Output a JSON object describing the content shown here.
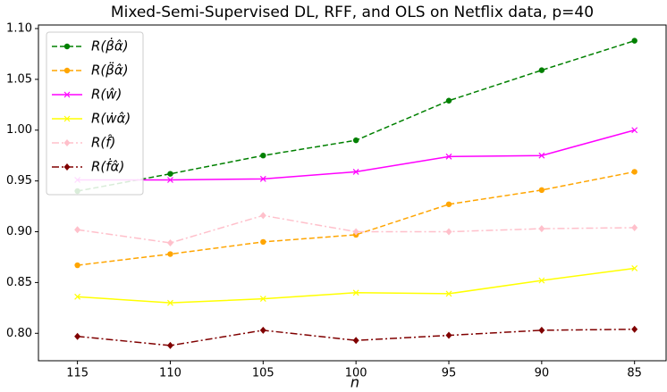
{
  "chart_data": {
    "type": "line",
    "title": "Mixed-Semi-Supervised DL, RFF, and OLS on Netflix data, p=40",
    "x_label": "n",
    "x": [
      115,
      110,
      105,
      100,
      95,
      90,
      85
    ],
    "xlim": [
      117.1,
      83.3
    ],
    "xticks": [
      115,
      110,
      105,
      100,
      95,
      90,
      85
    ],
    "ylim": [
      0.773,
      1.1035
    ],
    "yticks": [
      {
        "value": 0.8,
        "label": "0.80"
      },
      0.85,
      {
        "value": 0.9,
        "label": "0.90"
      },
      0.95,
      {
        "value": 1.0,
        "label": "1.00"
      },
      1.05,
      {
        "value": 1.1,
        "label": "1.10"
      }
    ],
    "legend": "upper left",
    "series": [
      {
        "name": "R(β̇α̂)",
        "color": "#008000",
        "dash": "dashed",
        "marker": "circle",
        "values": [
          0.94,
          0.957,
          0.975,
          0.99,
          1.029,
          1.059,
          1.088
        ]
      },
      {
        "name": "R(β̈α̂)",
        "color": "#ffa500",
        "dash": "dashed",
        "marker": "circle",
        "values": [
          0.867,
          0.878,
          0.89,
          0.897,
          0.927,
          0.941,
          0.959
        ]
      },
      {
        "name": "R(ŵ)",
        "color": "#ff00ff",
        "dash": "solid",
        "marker": "x",
        "values": [
          0.951,
          0.951,
          0.952,
          0.959,
          0.974,
          0.975,
          1.0
        ]
      },
      {
        "name": "R(ẇα̂)",
        "color": "#ffff00",
        "dash": "solid",
        "marker": "x",
        "values": [
          0.836,
          0.83,
          0.834,
          0.84,
          0.839,
          0.852,
          0.864
        ]
      },
      {
        "name": "R(f̂)",
        "color": "#ffc0cb",
        "dash": "dashdot",
        "marker": "diamond",
        "values": [
          0.902,
          0.889,
          0.916,
          0.9,
          0.9,
          0.903,
          0.904
        ]
      },
      {
        "name": "R(ḟα̂)",
        "color": "#800000",
        "dash": "dashdot",
        "marker": "diamond",
        "values": [
          0.797,
          0.788,
          0.803,
          0.793,
          0.798,
          0.803,
          0.804
        ]
      }
    ]
  }
}
